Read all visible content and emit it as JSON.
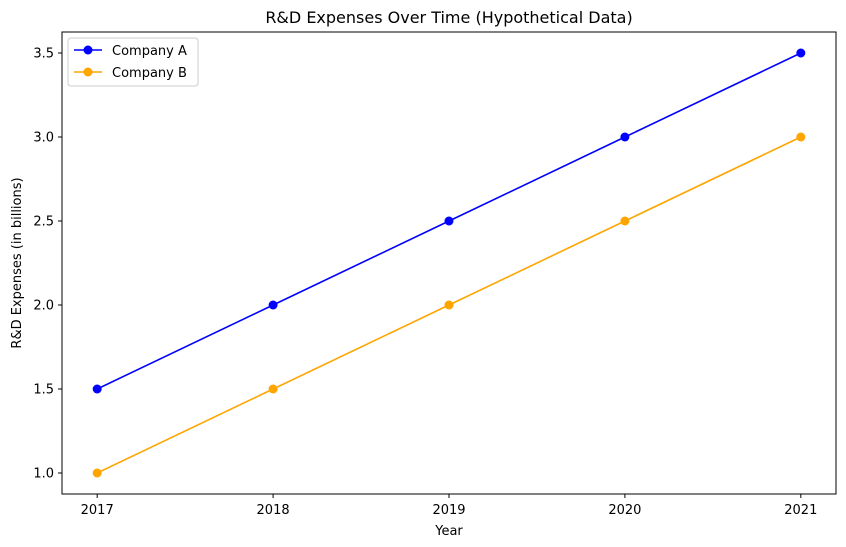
{
  "chart_data": {
    "type": "line",
    "title": "R&D Expenses Over Time (Hypothetical Data)",
    "xlabel": "Year",
    "ylabel": "R&D Expenses (in billions)",
    "x": [
      2017,
      2018,
      2019,
      2020,
      2021
    ],
    "x_tick_labels": [
      "2017",
      "2018",
      "2019",
      "2020",
      "2021"
    ],
    "xlim": [
      2016.8,
      2021.2
    ],
    "ylim": [
      0.875,
      3.625
    ],
    "y_ticks": [
      1.0,
      1.5,
      2.0,
      2.5,
      3.0,
      3.5
    ],
    "y_tick_labels": [
      "1.0",
      "1.5",
      "2.0",
      "2.5",
      "3.0",
      "3.5"
    ],
    "grid": false,
    "legend_position": "top-left",
    "series": [
      {
        "name": "Company A",
        "color": "#0000ff",
        "marker": "circle",
        "values": [
          1.5,
          2.0,
          2.5,
          3.0,
          3.5
        ]
      },
      {
        "name": "Company B",
        "color": "#ffa500",
        "marker": "circle",
        "values": [
          1.0,
          1.5,
          2.0,
          2.5,
          3.0
        ]
      }
    ]
  }
}
